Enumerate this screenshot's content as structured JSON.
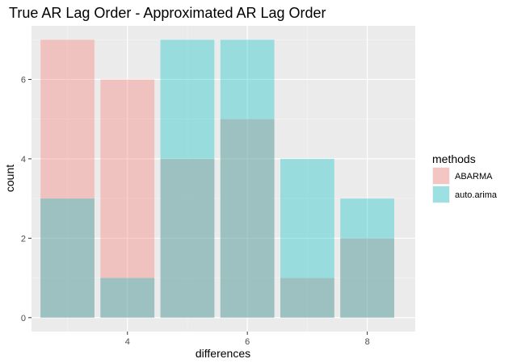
{
  "chart_data": {
    "type": "bar",
    "title": "True AR Lag Order - Approximated AR Lag Order",
    "xlabel": "differences",
    "ylabel": "count",
    "x": [
      3,
      4,
      5,
      6,
      7,
      8
    ],
    "xlim": [
      2.4,
      8.8
    ],
    "ylim": [
      -0.35,
      7.35
    ],
    "x_ticks": [
      4,
      6,
      8
    ],
    "y_ticks": [
      0,
      2,
      4,
      6
    ],
    "series": [
      {
        "name": "ABARMA",
        "values": [
          7,
          6,
          4,
          5,
          1,
          2
        ],
        "color": "#f8766d"
      },
      {
        "name": "auto.arima",
        "values": [
          3,
          1,
          7,
          7,
          4,
          3
        ],
        "color": "#00bfc4"
      }
    ],
    "bar_opacity": 0.35,
    "legend": {
      "title": "methods",
      "position": "right"
    },
    "panel_background": "#ebebeb",
    "grid": true
  }
}
